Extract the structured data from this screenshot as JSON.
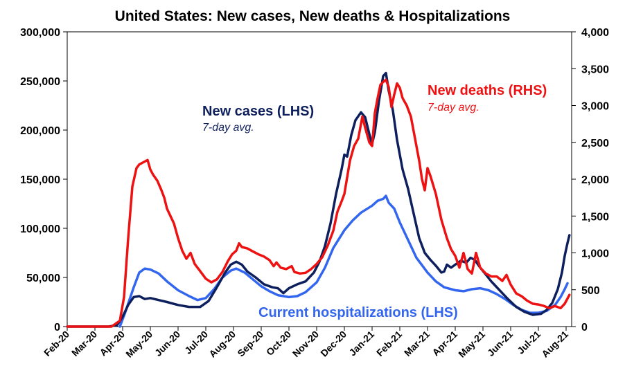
{
  "chart_data": {
    "type": "line",
    "title": "United States: New cases, New deaths & Hospitalizations",
    "x_tick_labels": [
      "Feb-20",
      "Mar-20",
      "Apr-20",
      "May-20",
      "Jun-20",
      "Jul-20",
      "Aug-20",
      "Sep-20",
      "Oct-20",
      "Nov-20",
      "Dec-20",
      "Jan-21",
      "Feb-21",
      "Mar-21",
      "Apr-21",
      "May-21",
      "Jun-21",
      "Jul-21",
      "Aug-21"
    ],
    "x_range_months": [
      0,
      18.2
    ],
    "left_axis": {
      "ylim": [
        0,
        300000
      ],
      "tick_labels": [
        "0",
        "50,000",
        "100,000",
        "150,000",
        "200,000",
        "250,000",
        "300,000"
      ]
    },
    "right_axis": {
      "ylim": [
        0,
        4000
      ],
      "tick_labels": [
        "0",
        "500",
        "1,000",
        "1,500",
        "2,000",
        "2,500",
        "3,000",
        "3,500",
        "4,000"
      ]
    },
    "grid": false,
    "annotations": {
      "cases_label": "New cases (LHS)",
      "cases_sub": "7-day avg.",
      "deaths_label": "New deaths (RHS)",
      "deaths_sub": "7-day avg.",
      "hosp_label": "Current hospitalizations (LHS)"
    },
    "series": [
      {
        "key": "hosp",
        "name": "Current hospitalizations (LHS)",
        "axis": "left",
        "color": "#3366ee",
        "points": [
          [
            1.9,
            0
          ],
          [
            2.1,
            15000
          ],
          [
            2.4,
            40000
          ],
          [
            2.6,
            55000
          ],
          [
            2.8,
            59000
          ],
          [
            3.0,
            58000
          ],
          [
            3.3,
            54000
          ],
          [
            3.6,
            46000
          ],
          [
            4.0,
            37000
          ],
          [
            4.4,
            31000
          ],
          [
            4.7,
            27000
          ],
          [
            5.0,
            29000
          ],
          [
            5.3,
            38000
          ],
          [
            5.6,
            50000
          ],
          [
            5.9,
            57000
          ],
          [
            6.1,
            59000
          ],
          [
            6.4,
            55000
          ],
          [
            6.7,
            48000
          ],
          [
            7.0,
            41000
          ],
          [
            7.3,
            36000
          ],
          [
            7.6,
            32000
          ],
          [
            8.0,
            30000
          ],
          [
            8.3,
            31000
          ],
          [
            8.6,
            35000
          ],
          [
            9.0,
            45000
          ],
          [
            9.3,
            60000
          ],
          [
            9.6,
            80000
          ],
          [
            10.0,
            98000
          ],
          [
            10.3,
            108000
          ],
          [
            10.6,
            116000
          ],
          [
            11.0,
            123000
          ],
          [
            11.2,
            128000
          ],
          [
            11.4,
            130000
          ],
          [
            11.5,
            133000
          ],
          [
            11.6,
            126000
          ],
          [
            11.8,
            120000
          ],
          [
            12.0,
            106000
          ],
          [
            12.3,
            88000
          ],
          [
            12.6,
            70000
          ],
          [
            13.0,
            55000
          ],
          [
            13.3,
            46000
          ],
          [
            13.6,
            40000
          ],
          [
            14.0,
            37000
          ],
          [
            14.3,
            36000
          ],
          [
            14.6,
            38000
          ],
          [
            14.9,
            39000
          ],
          [
            15.2,
            37000
          ],
          [
            15.5,
            33000
          ],
          [
            15.8,
            28000
          ],
          [
            16.1,
            22000
          ],
          [
            16.4,
            17000
          ],
          [
            16.7,
            14000
          ],
          [
            17.0,
            14000
          ],
          [
            17.3,
            16000
          ],
          [
            17.6,
            22000
          ],
          [
            17.8,
            30000
          ],
          [
            17.95,
            38000
          ],
          [
            18.05,
            44000
          ]
        ]
      },
      {
        "key": "cases",
        "name": "New cases (LHS)",
        "axis": "left",
        "color": "#0d1f5c",
        "points": [
          [
            0,
            0
          ],
          [
            1.5,
            0
          ],
          [
            1.8,
            1500
          ],
          [
            2.0,
            10000
          ],
          [
            2.2,
            22000
          ],
          [
            2.4,
            30000
          ],
          [
            2.6,
            31000
          ],
          [
            2.8,
            28000
          ],
          [
            3.0,
            29000
          ],
          [
            3.3,
            27000
          ],
          [
            3.6,
            25000
          ],
          [
            4.0,
            22000
          ],
          [
            4.4,
            20000
          ],
          [
            4.8,
            20000
          ],
          [
            5.1,
            26000
          ],
          [
            5.4,
            40000
          ],
          [
            5.7,
            55000
          ],
          [
            5.9,
            63000
          ],
          [
            6.1,
            66000
          ],
          [
            6.3,
            63000
          ],
          [
            6.5,
            56000
          ],
          [
            6.8,
            50000
          ],
          [
            7.1,
            43000
          ],
          [
            7.4,
            40000
          ],
          [
            7.6,
            39000
          ],
          [
            7.8,
            34000
          ],
          [
            8.0,
            39000
          ],
          [
            8.3,
            43000
          ],
          [
            8.6,
            46000
          ],
          [
            8.9,
            55000
          ],
          [
            9.1,
            66000
          ],
          [
            9.3,
            82000
          ],
          [
            9.5,
            105000
          ],
          [
            9.7,
            135000
          ],
          [
            9.9,
            160000
          ],
          [
            10.0,
            175000
          ],
          [
            10.1,
            173000
          ],
          [
            10.25,
            195000
          ],
          [
            10.4,
            210000
          ],
          [
            10.6,
            218000
          ],
          [
            10.75,
            213000
          ],
          [
            10.9,
            196000
          ],
          [
            11.0,
            186000
          ],
          [
            11.1,
            198000
          ],
          [
            11.25,
            230000
          ],
          [
            11.4,
            255000
          ],
          [
            11.5,
            258000
          ],
          [
            11.6,
            240000
          ],
          [
            11.75,
            220000
          ],
          [
            11.9,
            190000
          ],
          [
            12.1,
            160000
          ],
          [
            12.3,
            140000
          ],
          [
            12.5,
            115000
          ],
          [
            12.7,
            90000
          ],
          [
            12.9,
            75000
          ],
          [
            13.1,
            68000
          ],
          [
            13.3,
            62000
          ],
          [
            13.5,
            55000
          ],
          [
            13.6,
            56000
          ],
          [
            13.7,
            63000
          ],
          [
            13.85,
            60000
          ],
          [
            14.0,
            63000
          ],
          [
            14.2,
            67000
          ],
          [
            14.4,
            65000
          ],
          [
            14.55,
            70000
          ],
          [
            14.7,
            68000
          ],
          [
            14.9,
            60000
          ],
          [
            15.1,
            53000
          ],
          [
            15.3,
            46000
          ],
          [
            15.6,
            37000
          ],
          [
            15.9,
            28000
          ],
          [
            16.2,
            20000
          ],
          [
            16.5,
            15000
          ],
          [
            16.8,
            12000
          ],
          [
            17.1,
            13000
          ],
          [
            17.3,
            17000
          ],
          [
            17.5,
            24000
          ],
          [
            17.7,
            38000
          ],
          [
            17.85,
            55000
          ],
          [
            17.95,
            72000
          ],
          [
            18.05,
            85000
          ],
          [
            18.12,
            93000
          ]
        ]
      },
      {
        "key": "deaths",
        "name": "New deaths (RHS)",
        "axis": "right",
        "color": "#ee1111",
        "points": [
          [
            0,
            0
          ],
          [
            1.6,
            0
          ],
          [
            1.9,
            80
          ],
          [
            2.05,
            400
          ],
          [
            2.2,
            1200
          ],
          [
            2.35,
            1900
          ],
          [
            2.5,
            2150
          ],
          [
            2.6,
            2200
          ],
          [
            2.75,
            2230
          ],
          [
            2.9,
            2260
          ],
          [
            3.0,
            2130
          ],
          [
            3.1,
            2060
          ],
          [
            3.25,
            1980
          ],
          [
            3.4,
            1850
          ],
          [
            3.5,
            1750
          ],
          [
            3.6,
            1600
          ],
          [
            3.75,
            1480
          ],
          [
            3.85,
            1400
          ],
          [
            4.0,
            1200
          ],
          [
            4.15,
            1030
          ],
          [
            4.3,
            920
          ],
          [
            4.45,
            1000
          ],
          [
            4.6,
            850
          ],
          [
            4.8,
            750
          ],
          [
            5.0,
            650
          ],
          [
            5.2,
            600
          ],
          [
            5.4,
            640
          ],
          [
            5.6,
            740
          ],
          [
            5.8,
            890
          ],
          [
            5.95,
            980
          ],
          [
            6.1,
            1030
          ],
          [
            6.2,
            1130
          ],
          [
            6.3,
            1080
          ],
          [
            6.5,
            1060
          ],
          [
            6.7,
            1020
          ],
          [
            6.9,
            980
          ],
          [
            7.1,
            950
          ],
          [
            7.3,
            900
          ],
          [
            7.45,
            820
          ],
          [
            7.55,
            870
          ],
          [
            7.7,
            800
          ],
          [
            7.9,
            780
          ],
          [
            8.1,
            820
          ],
          [
            8.2,
            740
          ],
          [
            8.4,
            720
          ],
          [
            8.6,
            730
          ],
          [
            8.8,
            780
          ],
          [
            9.0,
            850
          ],
          [
            9.2,
            940
          ],
          [
            9.4,
            1100
          ],
          [
            9.6,
            1300
          ],
          [
            9.75,
            1560
          ],
          [
            9.9,
            1700
          ],
          [
            10.0,
            1800
          ],
          [
            10.2,
            2250
          ],
          [
            10.35,
            2450
          ],
          [
            10.5,
            2550
          ],
          [
            10.65,
            2850
          ],
          [
            10.75,
            2700
          ],
          [
            10.9,
            2500
          ],
          [
            11.0,
            2450
          ],
          [
            11.1,
            2900
          ],
          [
            11.2,
            3100
          ],
          [
            11.3,
            3280
          ],
          [
            11.4,
            3320
          ],
          [
            11.5,
            3350
          ],
          [
            11.6,
            3250
          ],
          [
            11.7,
            2980
          ],
          [
            11.8,
            3150
          ],
          [
            11.9,
            3300
          ],
          [
            12.0,
            3240
          ],
          [
            12.1,
            3100
          ],
          [
            12.25,
            3000
          ],
          [
            12.4,
            2850
          ],
          [
            12.55,
            2550
          ],
          [
            12.7,
            2250
          ],
          [
            12.8,
            2000
          ],
          [
            12.9,
            1850
          ],
          [
            13.0,
            2150
          ],
          [
            13.1,
            2050
          ],
          [
            13.3,
            1800
          ],
          [
            13.5,
            1450
          ],
          [
            13.7,
            1200
          ],
          [
            13.85,
            1050
          ],
          [
            14.0,
            960
          ],
          [
            14.15,
            800
          ],
          [
            14.3,
            1000
          ],
          [
            14.45,
            780
          ],
          [
            14.6,
            720
          ],
          [
            14.75,
            1000
          ],
          [
            14.9,
            800
          ],
          [
            15.1,
            720
          ],
          [
            15.3,
            680
          ],
          [
            15.5,
            680
          ],
          [
            15.7,
            620
          ],
          [
            15.85,
            700
          ],
          [
            16.0,
            570
          ],
          [
            16.2,
            450
          ],
          [
            16.4,
            410
          ],
          [
            16.6,
            350
          ],
          [
            16.8,
            310
          ],
          [
            17.0,
            300
          ],
          [
            17.2,
            280
          ],
          [
            17.4,
            250
          ],
          [
            17.6,
            280
          ],
          [
            17.8,
            250
          ],
          [
            17.95,
            310
          ],
          [
            18.05,
            380
          ],
          [
            18.12,
            430
          ]
        ]
      }
    ]
  }
}
